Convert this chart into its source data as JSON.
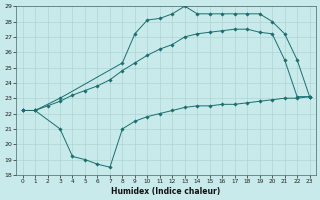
{
  "xlabel": "Humidex (Indice chaleur)",
  "bg_color": "#c8eaea",
  "grid_color": "#a8d0d0",
  "line_color": "#1a6e6e",
  "xlim": [
    -0.5,
    23.5
  ],
  "ylim": [
    18,
    29
  ],
  "yticks": [
    18,
    19,
    20,
    21,
    22,
    23,
    24,
    25,
    26,
    27,
    28,
    29
  ],
  "xticks": [
    0,
    1,
    2,
    3,
    4,
    5,
    6,
    7,
    8,
    9,
    10,
    11,
    12,
    13,
    14,
    15,
    16,
    17,
    18,
    19,
    20,
    21,
    22,
    23
  ],
  "series1_x": [
    0,
    1,
    3,
    4,
    5,
    6,
    7,
    8,
    9,
    10,
    11,
    12,
    13,
    14,
    15,
    16,
    17,
    18,
    19,
    20,
    21,
    22,
    23
  ],
  "series1_y": [
    22.2,
    22.2,
    21.0,
    19.2,
    19.0,
    18.7,
    18.5,
    21.0,
    21.5,
    21.8,
    22.0,
    22.2,
    22.4,
    22.5,
    22.5,
    22.6,
    22.6,
    22.7,
    22.8,
    22.9,
    23.0,
    23.0,
    23.1
  ],
  "series2_x": [
    0,
    1,
    2,
    3,
    4,
    5,
    6,
    7,
    8,
    9,
    10,
    11,
    12,
    13,
    14,
    15,
    16,
    17,
    18,
    19,
    20,
    21,
    22,
    23
  ],
  "series2_y": [
    22.2,
    22.2,
    22.5,
    22.8,
    23.2,
    23.5,
    23.8,
    24.2,
    24.8,
    25.3,
    25.8,
    26.2,
    26.5,
    27.0,
    27.2,
    27.3,
    27.4,
    27.5,
    27.5,
    27.3,
    27.2,
    25.5,
    23.1,
    23.1
  ],
  "series3_x": [
    0,
    1,
    3,
    8,
    9,
    10,
    11,
    12,
    13,
    14,
    15,
    16,
    17,
    18,
    19,
    20,
    21,
    22,
    23
  ],
  "series3_y": [
    22.2,
    22.2,
    23.0,
    25.3,
    27.2,
    28.1,
    28.2,
    28.5,
    29.0,
    28.5,
    28.5,
    28.5,
    28.5,
    28.5,
    28.5,
    28.0,
    27.2,
    25.5,
    23.1
  ]
}
